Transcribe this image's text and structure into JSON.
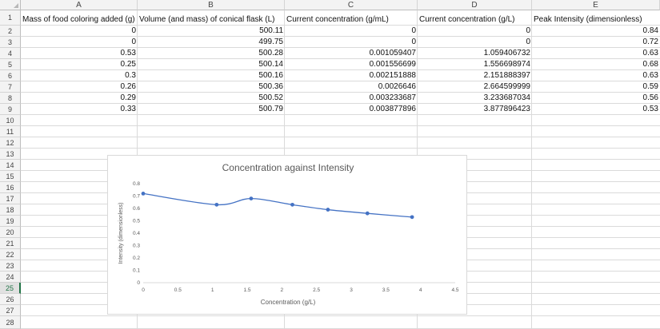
{
  "columns": [
    "A",
    "B",
    "C",
    "D",
    "E"
  ],
  "rows": [
    "1",
    "2",
    "3",
    "4",
    "5",
    "6",
    "7",
    "8",
    "9",
    "10",
    "11",
    "12",
    "13",
    "14",
    "15",
    "16",
    "17",
    "18",
    "19",
    "20",
    "21",
    "22",
    "23",
    "24",
    "25",
    "26",
    "27",
    "28"
  ],
  "selected_row": "25",
  "headers": {
    "a": "Mass of food coloring added (g)",
    "b": "Volume (and mass) of conical flask (L)",
    "c": "Current concentration (g/mL)",
    "d": "Current concentration (g/L)",
    "e": "Peak Intensity (dimensionless)"
  },
  "table": [
    [
      "0",
      "500.11",
      "0",
      "0",
      "0.84"
    ],
    [
      "0",
      "499.75",
      "0",
      "0",
      "0.72"
    ],
    [
      "0.53",
      "500.28",
      "0.001059407",
      "1.059406732",
      "0.63"
    ],
    [
      "0.25",
      "500.14",
      "0.001556699",
      "1.556698974",
      "0.68"
    ],
    [
      "0.3",
      "500.16",
      "0.002151888",
      "2.151888397",
      "0.63"
    ],
    [
      "0.26",
      "500.36",
      "0.0026646",
      "2.664599999",
      "0.59"
    ],
    [
      "0.29",
      "500.52",
      "0.003233687",
      "3.233687034",
      "0.56"
    ],
    [
      "0.33",
      "500.79",
      "0.003877896",
      "3.877896423",
      "0.53"
    ]
  ],
  "chart_data": {
    "type": "scatter",
    "title": "Concentration against Intensity",
    "xlabel": "Concentration (g/L)",
    "ylabel": "Intensity (dimensionless)",
    "xlim": [
      0,
      4.5
    ],
    "ylim": [
      0,
      0.8
    ],
    "x_ticks": [
      "0",
      "0.5",
      "1",
      "1.5",
      "2",
      "2.5",
      "3",
      "3.5",
      "4",
      "4.5"
    ],
    "y_ticks": [
      "0",
      "0.1",
      "0.2",
      "0.3",
      "0.4",
      "0.5",
      "0.6",
      "0.7",
      "0.8"
    ],
    "x": [
      0,
      1.059406732,
      1.556698974,
      2.151888397,
      2.664599999,
      3.233687034,
      3.877896423
    ],
    "y": [
      0.72,
      0.63,
      0.68,
      0.63,
      0.59,
      0.56,
      0.53
    ],
    "smooth_line": true,
    "grid": false,
    "legend": "none",
    "series_color": "#4472c4"
  }
}
